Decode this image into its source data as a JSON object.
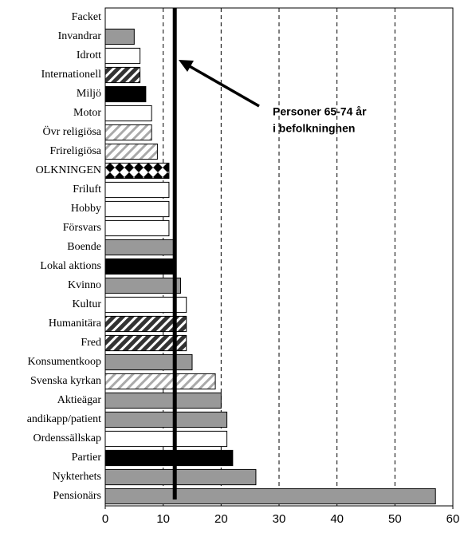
{
  "chart_data": {
    "type": "hbar",
    "categories": [
      "Facket",
      "Invandrar",
      "Idrott",
      "Internationell",
      "Miljö",
      "Motor",
      "Övr religiösa",
      "Frireligiösa",
      "OLKNINGEN",
      "Friluft",
      "Hobby",
      "Försvars",
      "Boende",
      "Lokal aktions",
      "Kvinno",
      "Kultur",
      "Humanitära",
      "Fred",
      "Konsumentkoop",
      "Svenska kyrkan",
      "Aktieägar",
      "andikapp/patient",
      "Ordenssällskap",
      "Partier",
      "Nykterhets",
      "Pensionärs"
    ],
    "values": [
      0,
      5,
      6,
      6,
      7,
      8,
      8,
      9,
      11,
      11,
      11,
      11,
      12,
      12,
      13,
      14,
      14,
      14,
      15,
      19,
      20,
      21,
      21,
      22,
      26,
      57
    ],
    "fills": [
      "gray",
      "gray",
      "white",
      "dark-hatch",
      "black",
      "white",
      "light-hatch",
      "light-hatch",
      "diamond",
      "white",
      "white",
      "white",
      "gray",
      "black",
      "gray",
      "white",
      "dark-hatch",
      "dark-hatch",
      "gray",
      "light-hatch",
      "gray",
      "gray",
      "white",
      "black",
      "gray",
      "gray"
    ],
    "xlim": [
      0,
      60
    ],
    "xticks": [
      0,
      10,
      20,
      30,
      40,
      50,
      60
    ],
    "grid": true,
    "reference_line": {
      "value": 12,
      "label": [
        "Personer 65-74 år",
        "i befolkningnen"
      ]
    }
  }
}
